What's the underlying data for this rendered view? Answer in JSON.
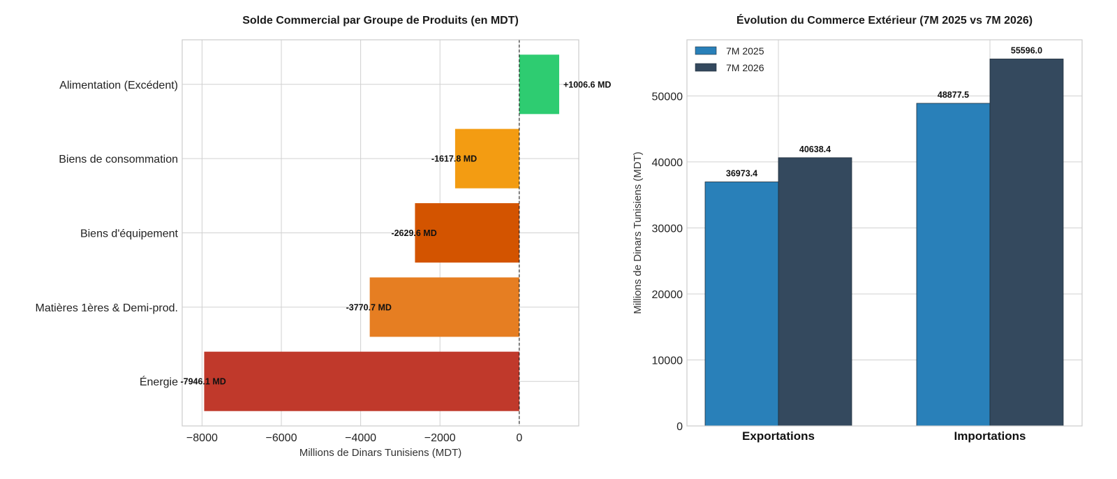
{
  "chart_data": [
    {
      "type": "bar",
      "orientation": "horizontal",
      "title": "Solde Commercial par Groupe de Produits (en MDT)",
      "xlabel": "Millions de Dinars Tunisiens (MDT)",
      "ylabel": "",
      "xlim": [
        -8500,
        1500
      ],
      "xticks": [
        -8000,
        -6000,
        -4000,
        -2000,
        0
      ],
      "xtick_labels": [
        "−8000",
        "−6000",
        "−4000",
        "−2000",
        "0"
      ],
      "grid": true,
      "categories": [
        "Alimentation (Excédent)",
        "Biens de consommation",
        "Biens d'équipement",
        "Matières 1ères & Demi-prod.",
        "Énergie"
      ],
      "values": [
        1006.6,
        -1617.8,
        -2629.6,
        -3770.7,
        -7946.1
      ],
      "data_labels": [
        "+1006.6 MD",
        "-1617.8 MD",
        "-2629.6 MD",
        "-3770.7 MD",
        "-7946.1 MD"
      ],
      "colors": [
        "#2ecc71",
        "#f39c12",
        "#d35400",
        "#e67e22",
        "#c0392b"
      ]
    },
    {
      "type": "bar",
      "orientation": "vertical",
      "title": "Évolution du Commerce Extérieur (7M 2025 vs 7M 2026)",
      "xlabel": "",
      "ylabel": "Millions de Dinars Tunisiens (MDT)",
      "ylim": [
        0,
        58500
      ],
      "yticks": [
        0,
        10000,
        20000,
        30000,
        40000,
        50000
      ],
      "ytick_labels": [
        "0",
        "10000",
        "20000",
        "30000",
        "40000",
        "50000"
      ],
      "grid": true,
      "legend_position": "top-left",
      "categories": [
        "Exportations",
        "Importations"
      ],
      "series": [
        {
          "name": "7M 2025",
          "values": [
            36973.4,
            48877.5
          ],
          "data_labels": [
            "36973.4",
            "48877.5"
          ],
          "color": "#2980b9"
        },
        {
          "name": "7M 2026",
          "values": [
            40638.4,
            55596.0
          ],
          "data_labels": [
            "40638.4",
            "55596.0"
          ],
          "color": "#34495e"
        }
      ]
    }
  ]
}
